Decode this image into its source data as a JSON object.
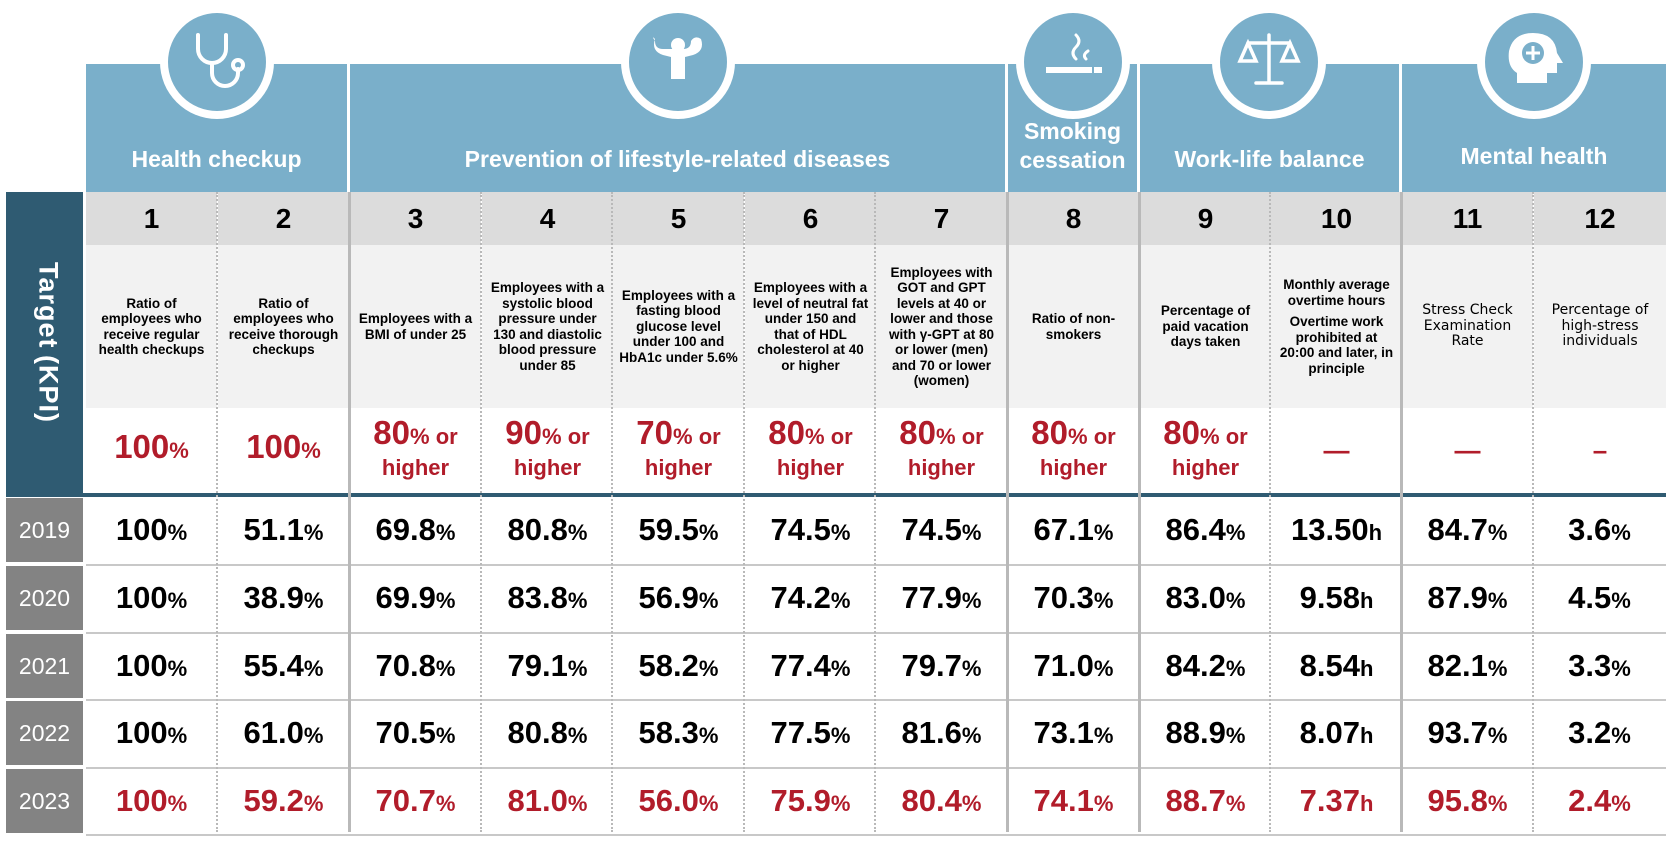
{
  "categories": [
    {
      "title": "Health checkup",
      "icon": "stethoscope-icon"
    },
    {
      "title": "Prevention of lifestyle-related diseases",
      "icon": "flexing-muscles-icon"
    },
    {
      "title_line1": "Smoking",
      "title_line2": "cessation",
      "icon": "cigarette-smoke-icon"
    },
    {
      "title": "Work-life balance",
      "icon": "balance-scale-icon"
    },
    {
      "title": "Mental health",
      "icon": "head-plus-icon"
    }
  ],
  "target_label": "Target (KPI)",
  "columns": [
    {
      "num": "1",
      "desc": "Ratio of employees who receive regular health checkups",
      "target_value": "100",
      "target_unit": "%",
      "target_suffix": ""
    },
    {
      "num": "2",
      "desc": "Ratio of employees who receive thorough checkups",
      "target_value": "100",
      "target_unit": "%",
      "target_suffix": ""
    },
    {
      "num": "3",
      "desc": "Employees with a BMI of under 25",
      "target_value": "80",
      "target_unit": "% or",
      "target_suffix": "higher"
    },
    {
      "num": "4",
      "desc": "Employees with a systolic blood pressure under 130 and diastolic blood pressure under 85",
      "target_value": "90",
      "target_unit": "% or",
      "target_suffix": "higher"
    },
    {
      "num": "5",
      "desc": "Employees with a fasting blood glucose level under 100 and HbA1c under 5.6%",
      "target_value": "70",
      "target_unit": "% or",
      "target_suffix": "higher"
    },
    {
      "num": "6",
      "desc": "Employees with a level of neutral fat under 150 and that of HDL cholesterol at 40 or higher",
      "target_value": "80",
      "target_unit": "% or",
      "target_suffix": "higher"
    },
    {
      "num": "7",
      "desc": "Employees with GOT and GPT levels at 40 or lower and those with γ-GPT at 80 or lower (men) and 70 or lower (women)",
      "target_value": "80",
      "target_unit": "% or",
      "target_suffix": "higher"
    },
    {
      "num": "8",
      "desc": "Ratio of non-smokers",
      "target_value": "80",
      "target_unit": "% or",
      "target_suffix": "higher"
    },
    {
      "num": "9",
      "desc": "Percentage of paid vacation days taken",
      "target_value": "80",
      "target_unit": "% or",
      "target_suffix": "higher"
    },
    {
      "num": "10",
      "desc": "Monthly average overtime hours",
      "desc2": "Overtime work prohibited at 20:00 and later, in principle",
      "target_dash": "—"
    },
    {
      "num": "11",
      "desc": "Stress Check Examination Rate",
      "target_dash": "—"
    },
    {
      "num": "12",
      "desc": "Percentage of high-stress individuals",
      "target_dash": "–"
    }
  ],
  "rows": [
    {
      "year": "2019",
      "values": [
        [
          "100",
          "%"
        ],
        [
          "51.1",
          "%"
        ],
        [
          "69.8",
          "%"
        ],
        [
          "80.8",
          "%"
        ],
        [
          "59.5",
          "%"
        ],
        [
          "74.5",
          "%"
        ],
        [
          "74.5",
          "%"
        ],
        [
          "67.1",
          "%"
        ],
        [
          "86.4",
          "%"
        ],
        [
          "13.50",
          "h"
        ],
        [
          "84.7",
          "%"
        ],
        [
          "3.6",
          "%"
        ]
      ]
    },
    {
      "year": "2020",
      "values": [
        [
          "100",
          "%"
        ],
        [
          "38.9",
          "%"
        ],
        [
          "69.9",
          "%"
        ],
        [
          "83.8",
          "%"
        ],
        [
          "56.9",
          "%"
        ],
        [
          "74.2",
          "%"
        ],
        [
          "77.9",
          "%"
        ],
        [
          "70.3",
          "%"
        ],
        [
          "83.0",
          "%"
        ],
        [
          "9.58",
          "h"
        ],
        [
          "87.9",
          "%"
        ],
        [
          "4.5",
          "%"
        ]
      ]
    },
    {
      "year": "2021",
      "values": [
        [
          "100",
          "%"
        ],
        [
          "55.4",
          "%"
        ],
        [
          "70.8",
          "%"
        ],
        [
          "79.1",
          "%"
        ],
        [
          "58.2",
          "%"
        ],
        [
          "77.4",
          "%"
        ],
        [
          "79.7",
          "%"
        ],
        [
          "71.0",
          "%"
        ],
        [
          "84.2",
          "%"
        ],
        [
          "8.54",
          "h"
        ],
        [
          "82.1",
          "%"
        ],
        [
          "3.3",
          "%"
        ]
      ]
    },
    {
      "year": "2022",
      "values": [
        [
          "100",
          "%"
        ],
        [
          "61.0",
          "%"
        ],
        [
          "70.5",
          "%"
        ],
        [
          "80.8",
          "%"
        ],
        [
          "58.3",
          "%"
        ],
        [
          "77.5",
          "%"
        ],
        [
          "81.6",
          "%"
        ],
        [
          "73.1",
          "%"
        ],
        [
          "88.9",
          "%"
        ],
        [
          "8.07",
          "h"
        ],
        [
          "93.7",
          "%"
        ],
        [
          "3.2",
          "%"
        ]
      ]
    },
    {
      "year": "2023",
      "values": [
        [
          "100",
          "%"
        ],
        [
          "59.2",
          "%"
        ],
        [
          "70.7",
          "%"
        ],
        [
          "81.0",
          "%"
        ],
        [
          "56.0",
          "%"
        ],
        [
          "75.9",
          "%"
        ],
        [
          "80.4",
          "%"
        ],
        [
          "74.1",
          "%"
        ],
        [
          "88.7",
          "%"
        ],
        [
          "7.37",
          "h"
        ],
        [
          "95.8",
          "%"
        ],
        [
          "2.4",
          "%"
        ]
      ]
    }
  ],
  "colors": {
    "header_blue": "#7aafca",
    "target_navy": "#2f5b72",
    "highlight_red": "#b11c2a",
    "year_gray": "#838383"
  }
}
